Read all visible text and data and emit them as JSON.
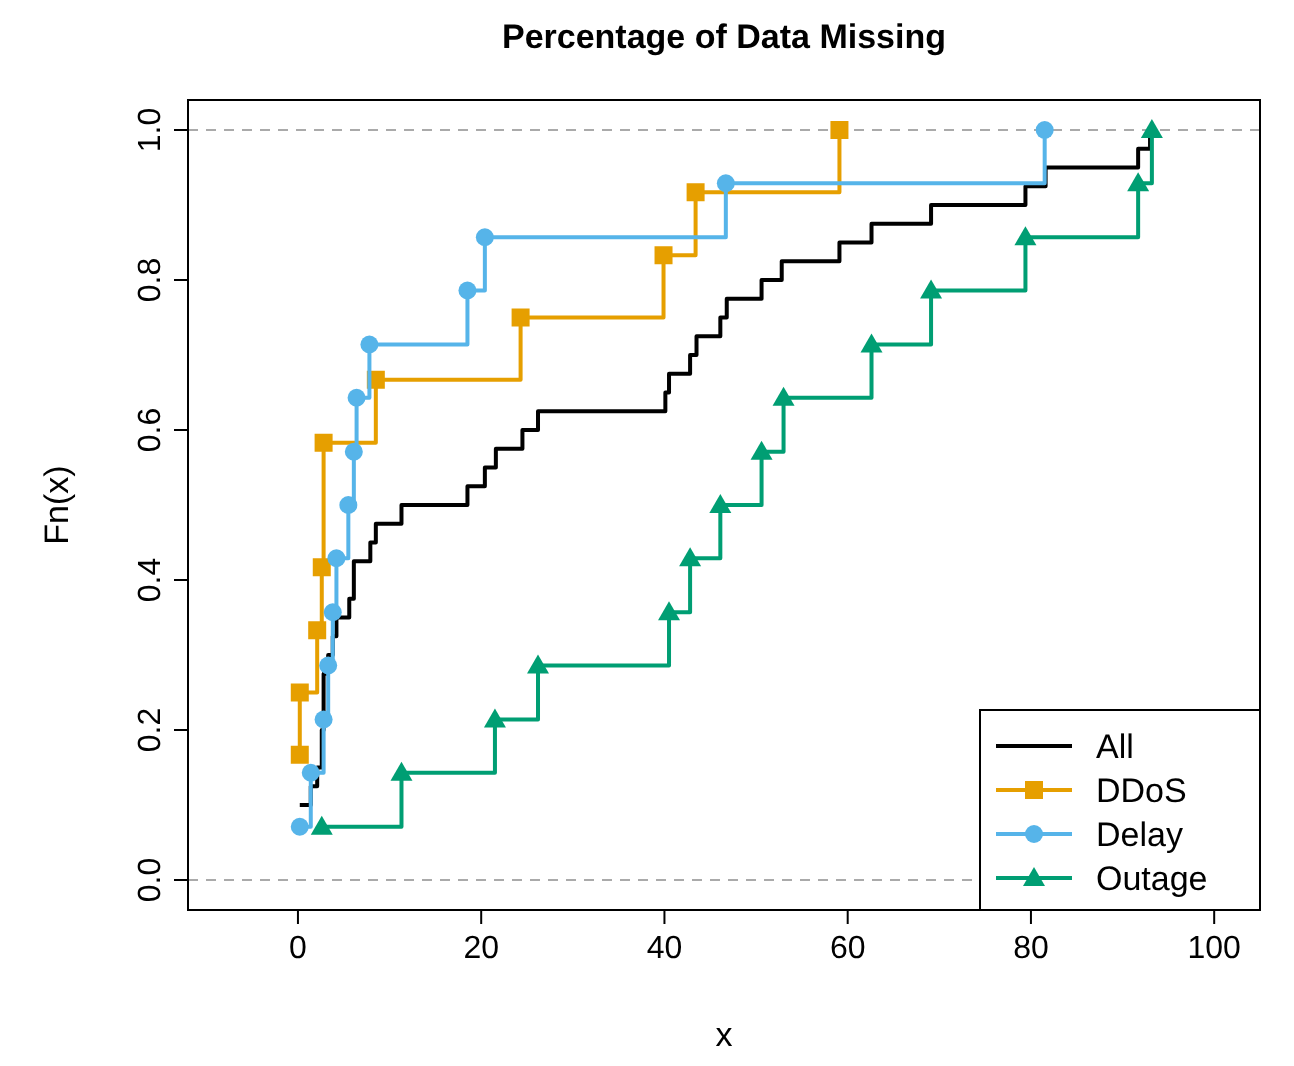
{
  "chart_data": {
    "type": "step",
    "title": "Percentage of Data Missing",
    "xlabel": "x",
    "ylabel": "Fn(x)",
    "xlim": [
      -12,
      105
    ],
    "xticks": [
      0,
      20,
      40,
      60,
      80,
      100
    ],
    "ylim": [
      -0.04,
      1.04
    ],
    "yticks": [
      {
        "value": 0,
        "label": "0.0"
      },
      0.2,
      0.4,
      0.6,
      0.8,
      {
        "value": 1,
        "label": "1.0"
      }
    ],
    "grid": false,
    "legend": "bottom right",
    "ref_lines": [
      {
        "axis": "y",
        "value": 0,
        "color": "#aaaaaa",
        "line_style": "dashed"
      },
      {
        "axis": "y",
        "value": 1,
        "color": "#aaaaaa",
        "line_style": "dashed"
      }
    ],
    "series": [
      {
        "name": "All",
        "color": "#000000",
        "marker": "none",
        "x": [
          0.2,
          1.4,
          2.1,
          2.6,
          2.8,
          3.3,
          3.8,
          4.2,
          5.6,
          6.1,
          7.9,
          8.5,
          11.3,
          18.5,
          20.4,
          21.6,
          24.5,
          26.2,
          40.1,
          40.5,
          42.8,
          43.5,
          46.1,
          46.8,
          50.6,
          52.8,
          59.1,
          62.6,
          69.1,
          79.4,
          81.6,
          91.7,
          93
        ],
        "values": [
          0.1,
          0.125,
          0.15,
          0.2,
          0.275,
          0.3,
          0.325,
          0.35,
          0.375,
          0.425,
          0.45,
          0.475,
          0.5,
          0.525,
          0.55,
          0.575,
          0.6,
          0.625,
          0.65,
          0.675,
          0.7,
          0.725,
          0.75,
          0.775,
          0.8,
          0.825,
          0.85,
          0.875,
          0.9,
          0.925,
          0.95,
          0.975,
          1.0
        ]
      },
      {
        "name": "DDoS",
        "color": "#e69f00",
        "marker": "square",
        "x": [
          0.2,
          0.2,
          2.1,
          2.6,
          2.8,
          8.5,
          24.3,
          39.9,
          43.4,
          59.1
        ],
        "values": [
          0.167,
          0.25,
          0.333,
          0.417,
          0.583,
          0.667,
          0.75,
          0.833,
          0.917,
          1.0
        ]
      },
      {
        "name": "Delay",
        "color": "#56b4e9",
        "marker": "circle",
        "x": [
          0.2,
          1.4,
          2.8,
          3.3,
          3.8,
          4.2,
          5.5,
          6.1,
          6.4,
          7.8,
          18.5,
          20.4,
          46.7,
          81.5
        ],
        "values": [
          0.071,
          0.143,
          0.214,
          0.286,
          0.357,
          0.429,
          0.5,
          0.571,
          0.643,
          0.714,
          0.786,
          0.857,
          0.929,
          1.0
        ]
      },
      {
        "name": "Outage",
        "color": "#009e73",
        "marker": "triangle",
        "x": [
          2.6,
          11.3,
          21.5,
          26.2,
          40.5,
          42.8,
          46.1,
          50.6,
          53.0,
          62.6,
          69.1,
          79.4,
          91.7,
          93.2
        ],
        "values": [
          0.071,
          0.143,
          0.214,
          0.286,
          0.357,
          0.429,
          0.5,
          0.571,
          0.643,
          0.714,
          0.786,
          0.857,
          0.929,
          1.0
        ]
      }
    ]
  }
}
